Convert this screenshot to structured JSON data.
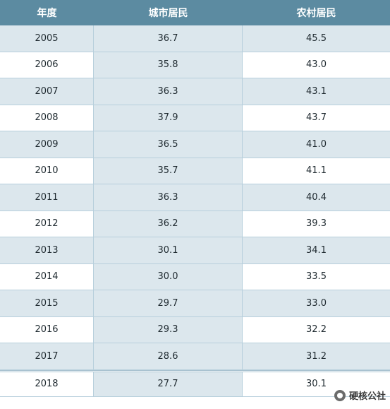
{
  "table": {
    "headers": [
      "年度",
      "城市居民",
      "农村居民"
    ],
    "rows": [
      [
        "2005",
        "36.7",
        "45.5"
      ],
      [
        "2006",
        "35.8",
        "43.0"
      ],
      [
        "2007",
        "36.3",
        "43.1"
      ],
      [
        "2008",
        "37.9",
        "43.7"
      ],
      [
        "2009",
        "36.5",
        "41.0"
      ],
      [
        "2010",
        "35.7",
        "41.1"
      ],
      [
        "2011",
        "36.3",
        "40.4"
      ],
      [
        "2012",
        "36.2",
        "39.3"
      ],
      [
        "2013",
        "30.1",
        "34.1"
      ],
      [
        "2014",
        "30.0",
        "33.5"
      ],
      [
        "2015",
        "29.7",
        "33.0"
      ],
      [
        "2016",
        "29.3",
        "32.2"
      ],
      [
        "2017",
        "28.6",
        "31.2"
      ],
      [
        "2018",
        "27.7",
        "30.1"
      ]
    ]
  },
  "watermark": {
    "text": "硬核公社",
    "icon": "wechat-official-account-icon"
  }
}
